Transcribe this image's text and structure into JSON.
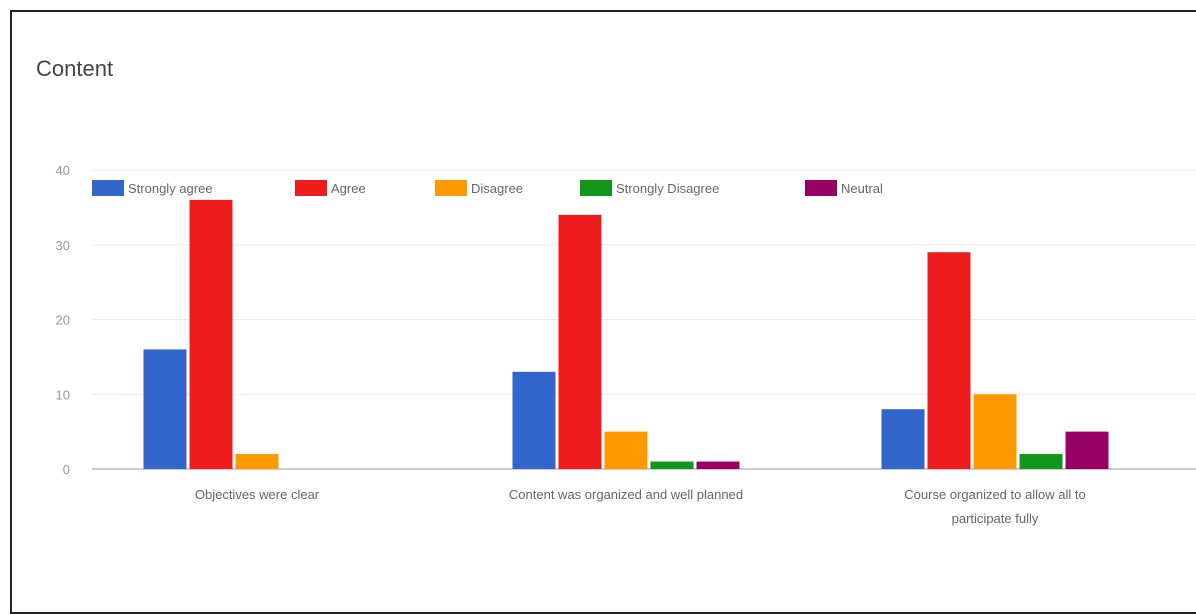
{
  "chart_data": {
    "type": "bar",
    "title": "Content",
    "xlabel": "",
    "ylabel": "",
    "ylim": [
      0,
      40
    ],
    "yticks": [
      0,
      10,
      20,
      30,
      40
    ],
    "grid": true,
    "legend_position": "top-left",
    "categories": [
      [
        "Objectives were clear"
      ],
      [
        "Content was organized and well planned"
      ],
      [
        "Course organized to allow all to",
        "participate fully"
      ]
    ],
    "series": [
      {
        "name": "Strongly agree",
        "color": "#3366cc",
        "values": [
          16,
          13,
          8
        ]
      },
      {
        "name": "Agree",
        "color": "#ee1c1c",
        "values": [
          36,
          34,
          29
        ]
      },
      {
        "name": "Disagree",
        "color": "#ff9900",
        "values": [
          2,
          5,
          10
        ]
      },
      {
        "name": "Strongly Disagree",
        "color": "#109618",
        "values": [
          0,
          1,
          2
        ]
      },
      {
        "name": "Neutral",
        "color": "#990066",
        "values": [
          0,
          1,
          5
        ]
      }
    ]
  }
}
